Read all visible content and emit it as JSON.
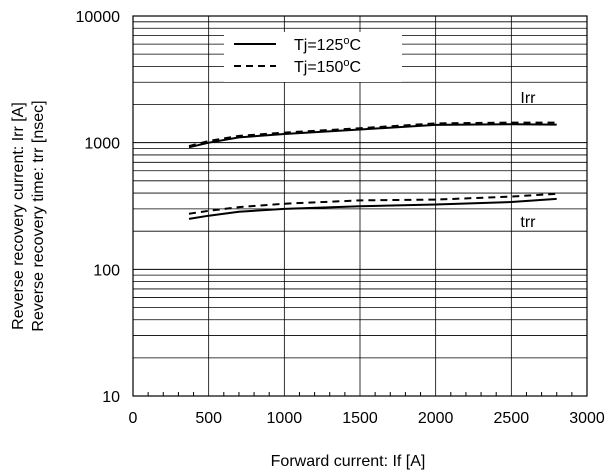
{
  "chart_data": {
    "type": "line",
    "xlabel": "Forward current: If [A]",
    "ylabel_lines": [
      "Reverse recovery current: Irr [A]",
      "Reverse recovery time: trr [nsec]"
    ],
    "xlim": [
      0,
      3000
    ],
    "ylim": [
      10,
      10000
    ],
    "yscale": "log",
    "grid": true,
    "x_ticks": [
      0,
      500,
      1000,
      1500,
      2000,
      2500,
      3000
    ],
    "x_tick_labels": [
      "0",
      "500",
      "1000",
      "1500",
      "2000",
      "2500",
      "3000"
    ],
    "y_ticks": [
      10,
      100,
      1000,
      10000
    ],
    "y_tick_labels": [
      "10",
      "100",
      "1000",
      "10000"
    ],
    "legend": {
      "position": "top-center",
      "entries": [
        {
          "label_main": "Tj=125",
          "label_sup": "o",
          "label_end": "C",
          "style": "solid"
        },
        {
          "label_main": "Tj=150",
          "label_sup": "o",
          "label_end": "C",
          "style": "dashed"
        }
      ]
    },
    "annotations": [
      {
        "text": "Irr",
        "x": 2560,
        "y": 2050
      },
      {
        "text": "trr",
        "x": 2560,
        "y": 215
      }
    ],
    "series": [
      {
        "group": "Irr",
        "style": "solid",
        "x": [
          370,
          500,
          700,
          1000,
          1500,
          2000,
          2500,
          2800
        ],
        "y": [
          920,
          1000,
          1100,
          1170,
          1270,
          1380,
          1400,
          1390
        ]
      },
      {
        "group": "Irr",
        "style": "dashed",
        "x": [
          370,
          500,
          700,
          1000,
          1500,
          2000,
          2500,
          2800
        ],
        "y": [
          940,
          1030,
          1130,
          1200,
          1300,
          1420,
          1440,
          1440
        ]
      },
      {
        "group": "trr",
        "style": "solid",
        "x": [
          370,
          500,
          700,
          1000,
          1500,
          2000,
          2500,
          2800
        ],
        "y": [
          250,
          265,
          285,
          300,
          315,
          325,
          340,
          360
        ]
      },
      {
        "group": "trr",
        "style": "dashed",
        "x": [
          370,
          500,
          700,
          1000,
          1500,
          2000,
          2500,
          2800
        ],
        "y": [
          275,
          290,
          310,
          330,
          350,
          355,
          375,
          395
        ]
      }
    ]
  }
}
